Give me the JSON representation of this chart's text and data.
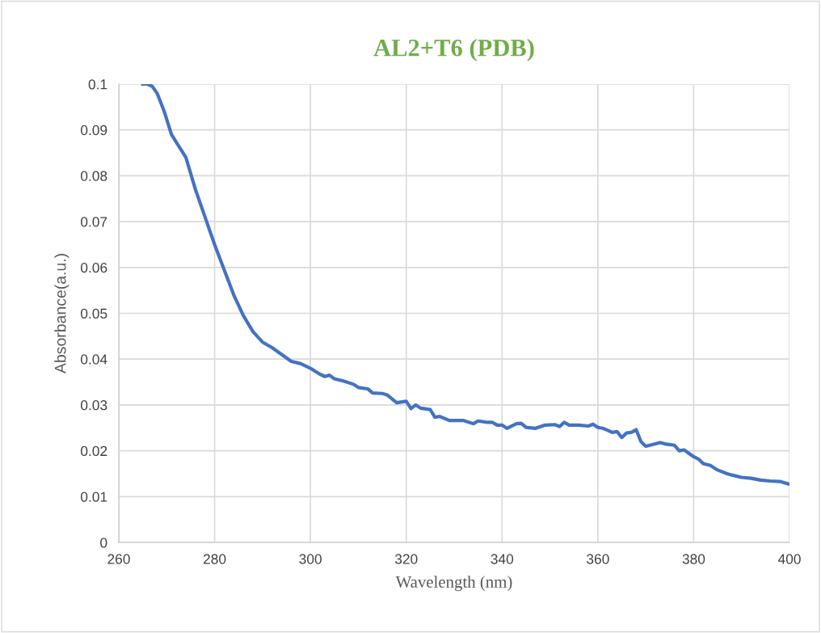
{
  "chart_data": {
    "type": "line",
    "title": "AL2+T6 (PDB)",
    "xlabel": "Wavelength (nm)",
    "ylabel": "Absorbance(a.u.)",
    "xlim": [
      260,
      400
    ],
    "xticks": [
      260,
      280,
      300,
      320,
      340,
      360,
      380,
      400
    ],
    "ylim": [
      0,
      0.1
    ],
    "yticks": [
      0,
      0.01,
      0.02,
      0.03,
      0.04,
      0.05,
      0.06,
      0.07,
      0.08,
      0.09,
      0.1
    ],
    "grid": true,
    "marker": "none",
    "line_style": "solid",
    "series": [
      {
        "color": "#4472c4",
        "x": [
          265,
          266,
          267,
          268,
          269.5,
          271,
          272.5,
          274,
          276,
          278,
          280,
          282,
          284,
          286,
          288,
          290,
          292,
          294,
          296,
          298,
          300,
          302,
          303,
          304,
          305,
          307,
          309,
          310,
          312,
          313,
          315,
          316,
          318,
          320,
          321,
          322,
          323,
          325,
          326,
          327,
          329,
          331,
          332,
          334,
          335,
          337,
          338,
          339,
          340,
          341,
          343,
          344,
          345,
          347,
          349,
          351,
          352,
          353,
          354,
          356,
          358,
          359,
          360,
          361,
          362,
          363,
          364,
          365,
          366,
          367,
          368,
          369,
          370,
          372,
          373,
          374,
          376,
          377,
          378,
          380,
          381,
          382,
          383.5,
          385,
          387,
          388,
          390,
          392,
          394,
          396,
          398,
          400
        ],
        "values": [
          0.1,
          0.1,
          0.0995,
          0.098,
          0.094,
          0.089,
          0.0865,
          0.084,
          0.077,
          0.071,
          0.065,
          0.0595,
          0.054,
          0.0495,
          0.046,
          0.0437,
          0.0425,
          0.041,
          0.0395,
          0.039,
          0.038,
          0.0367,
          0.0362,
          0.0365,
          0.0357,
          0.0352,
          0.0345,
          0.0338,
          0.0335,
          0.0326,
          0.0325,
          0.0322,
          0.0305,
          0.0308,
          0.0292,
          0.03,
          0.0293,
          0.029,
          0.0273,
          0.0275,
          0.0266,
          0.0266,
          0.0266,
          0.0259,
          0.0265,
          0.0262,
          0.0262,
          0.0256,
          0.0256,
          0.0249,
          0.0259,
          0.026,
          0.0251,
          0.0249,
          0.0256,
          0.0257,
          0.0253,
          0.0262,
          0.0256,
          0.0256,
          0.0254,
          0.0258,
          0.0251,
          0.0249,
          0.0245,
          0.024,
          0.0242,
          0.0229,
          0.0239,
          0.024,
          0.0246,
          0.022,
          0.021,
          0.0215,
          0.0218,
          0.0215,
          0.0212,
          0.02,
          0.0202,
          0.0187,
          0.0182,
          0.0172,
          0.0168,
          0.0158,
          0.015,
          0.0147,
          0.0142,
          0.014,
          0.0136,
          0.0134,
          0.0133,
          0.0127
        ]
      }
    ]
  }
}
